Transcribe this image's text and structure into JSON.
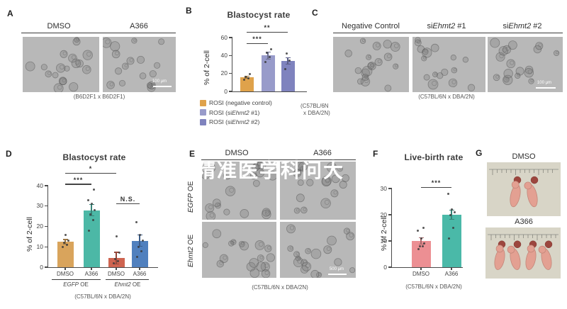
{
  "watermark": {
    "text": "精准医学科问大",
    "color": "#ffffff"
  },
  "panels": {
    "A": {
      "letter": "A",
      "label_left": "DMSO",
      "label_right": "A366",
      "caption": "(B6D2F1 x B6D2F1)",
      "scale_bar": "100 μm"
    },
    "B": {
      "letter": "B",
      "strain_line1": "(C57BL/6N",
      "strain_line2": "x DBA/2N)"
    },
    "C": {
      "letter": "C",
      "labels": [
        [
          {
            "t": "Negative Control"
          }
        ],
        [
          {
            "t": "si"
          },
          {
            "t": "Ehmt2",
            "i": true
          },
          {
            "t": " #1"
          }
        ],
        [
          {
            "t": "si"
          },
          {
            "t": "Ehmt2",
            "i": true
          },
          {
            "t": " #2"
          }
        ]
      ],
      "caption": "(C57BL/6N x DBA/2N)",
      "scale_bar": "100 μm"
    },
    "D": {
      "letter": "D",
      "groups": [
        [
          {
            "t": "EGFP",
            "i": true
          },
          {
            "t": " OE"
          }
        ],
        [
          {
            "t": "Ehmt2",
            "i": true
          },
          {
            "t": " OE"
          }
        ]
      ],
      "caption": "(C57BL/6N x DBA/2N)"
    },
    "E": {
      "letter": "E",
      "col_left": "DMSO",
      "col_right": "A366",
      "rows": [
        [
          {
            "t": "EGFP",
            "i": true
          },
          {
            "t": " OE"
          }
        ],
        [
          {
            "t": "Ehmt2",
            "i": true
          },
          {
            "t": " OE"
          }
        ]
      ],
      "caption": "(C57BL/6N x DBA/2N)",
      "scale_bar": "500 μm"
    },
    "F": {
      "letter": "F",
      "caption": "(C57BL/6N x DBA/2N)"
    },
    "G": {
      "letter": "G",
      "top": {
        "label": "DMSO",
        "pups": 2
      },
      "bottom": {
        "label": "A366",
        "pups": 4
      }
    }
  },
  "chart_data": [
    {
      "id": "B",
      "type": "bar",
      "title": "Blastocyst rate",
      "ylabel": "% of 2-cell",
      "ylim": [
        0,
        60
      ],
      "yticks": [
        0,
        20,
        40,
        60
      ],
      "grid": false,
      "legend_position": "bottom-left",
      "series": [
        {
          "legend_parts": [
            {
              "t": "ROSI (negative control)"
            }
          ],
          "color": "#DFA24B",
          "value": 16,
          "err": 1.5,
          "points": [
            13,
            15,
            16,
            19
          ]
        },
        {
          "legend_parts": [
            {
              "t": "ROSI (si"
            },
            {
              "t": "Ehmt2",
              "i": true
            },
            {
              "t": " #1)"
            }
          ],
          "color": "#989BCA",
          "value": 40,
          "err": 4.5,
          "points": [
            33,
            38,
            43,
            47
          ]
        },
        {
          "legend_parts": [
            {
              "t": "ROSI (si"
            },
            {
              "t": "Ehmt2",
              "i": true
            },
            {
              "t": " #2)"
            }
          ],
          "color": "#7F83BE",
          "value": 34,
          "err": 4,
          "points": [
            25,
            34,
            42
          ]
        }
      ],
      "sig": [
        {
          "a": 0,
          "b": 1,
          "label": "***",
          "at": 53
        },
        {
          "a": 0,
          "b": 2,
          "label": "**",
          "at": 65.5
        }
      ]
    },
    {
      "id": "D",
      "type": "bar",
      "title": "Blastocyst rate",
      "ylabel": "% of 2-cell",
      "ylim": [
        0,
        40
      ],
      "yticks": [
        0,
        10,
        20,
        30,
        40
      ],
      "grid": false,
      "categories_parts": [
        [
          {
            "t": "DMSO"
          }
        ],
        [
          {
            "t": "A366"
          }
        ],
        [
          {
            "t": "DMSO"
          }
        ],
        [
          {
            "t": "A366"
          }
        ]
      ],
      "series": [
        {
          "color": "#D9A45C",
          "value": 12.5,
          "err": 1.3,
          "points": [
            10,
            11,
            12,
            13,
            16
          ]
        },
        {
          "color": "#4CB8A6",
          "value": 28,
          "err": 3,
          "points": [
            18,
            23,
            26,
            28,
            31,
            33,
            38
          ]
        },
        {
          "color": "#CE6450",
          "value": 4.5,
          "err": 3,
          "points": [
            2,
            3,
            4,
            7,
            15
          ]
        },
        {
          "color": "#5080BE",
          "value": 13,
          "err": 3,
          "points": [
            5,
            8,
            10,
            13,
            16,
            22
          ]
        }
      ],
      "sig": [
        {
          "a": 0,
          "b": 1,
          "label": "***",
          "at": 40.5
        },
        {
          "a": 0,
          "b": 2,
          "label": "*",
          "at": 46
        },
        {
          "a": 2,
          "b": 3,
          "label": "N.S.",
          "at": 31
        }
      ]
    },
    {
      "id": "F",
      "type": "bar",
      "title": "Live-birth rate",
      "ylabel": "% of 2-cell",
      "ylim": [
        0,
        30
      ],
      "yticks": [
        0,
        10,
        20,
        30
      ],
      "grid": false,
      "categories_parts": [
        [
          {
            "t": "DMSO"
          }
        ],
        [
          {
            "t": "A366"
          }
        ]
      ],
      "series": [
        {
          "color": "#EC8F93",
          "value": 10,
          "err": 1.3,
          "points": [
            7,
            8,
            8,
            9,
            11,
            14,
            15
          ]
        },
        {
          "color": "#4AB9A8",
          "value": 20,
          "err": 2,
          "points": [
            11,
            15,
            20,
            21,
            22,
            28
          ]
        }
      ],
      "sig": [
        {
          "a": 0,
          "b": 1,
          "label": "***",
          "at": 30.3
        }
      ]
    }
  ]
}
